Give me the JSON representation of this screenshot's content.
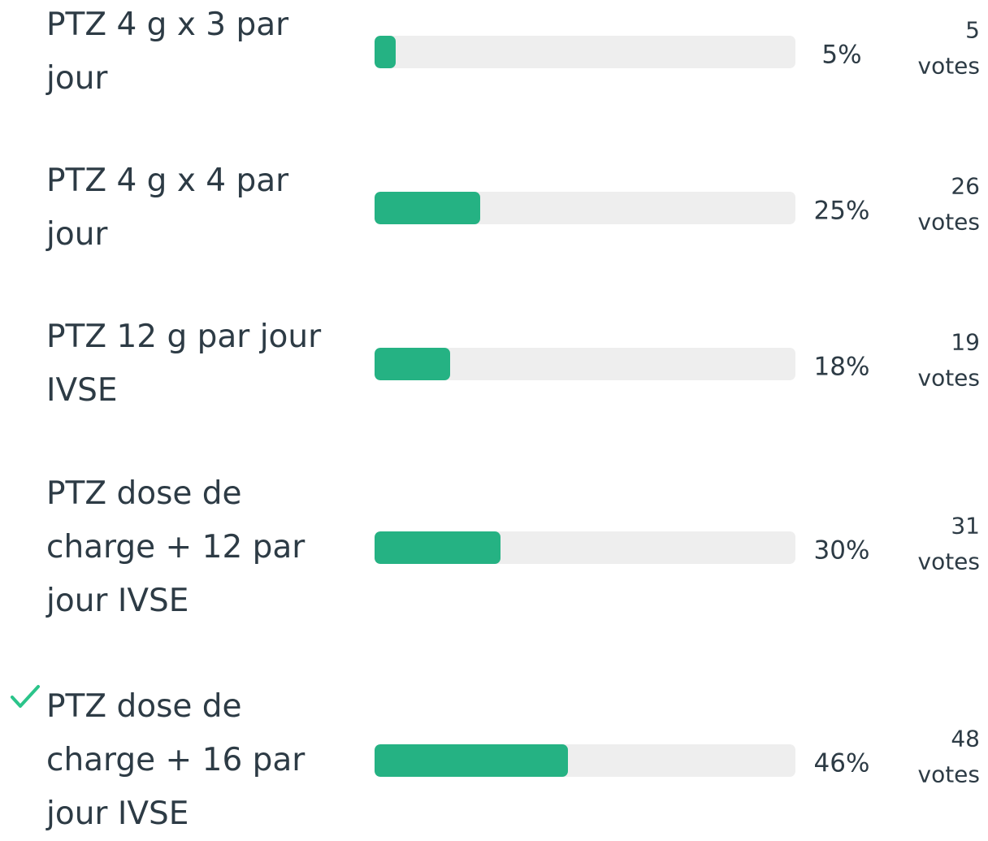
{
  "poll": {
    "votes_word": "votes",
    "options": [
      {
        "label": "PTZ 4 g x 3 par jour",
        "percent": 5,
        "percent_label": "5%",
        "votes": 5,
        "correct": false
      },
      {
        "label": "PTZ 4 g x 4 par jour",
        "percent": 25,
        "percent_label": "25%",
        "votes": 26,
        "correct": false
      },
      {
        "label": "PTZ 12 g par jour IVSE",
        "percent": 18,
        "percent_label": "18%",
        "votes": 19,
        "correct": false
      },
      {
        "label": "PTZ dose de charge + 12 par jour IVSE",
        "percent": 30,
        "percent_label": "30%",
        "votes": 31,
        "correct": false
      },
      {
        "label": "PTZ dose de charge + 16 par jour IVSE",
        "percent": 46,
        "percent_label": "46%",
        "votes": 48,
        "correct": true
      }
    ]
  }
}
